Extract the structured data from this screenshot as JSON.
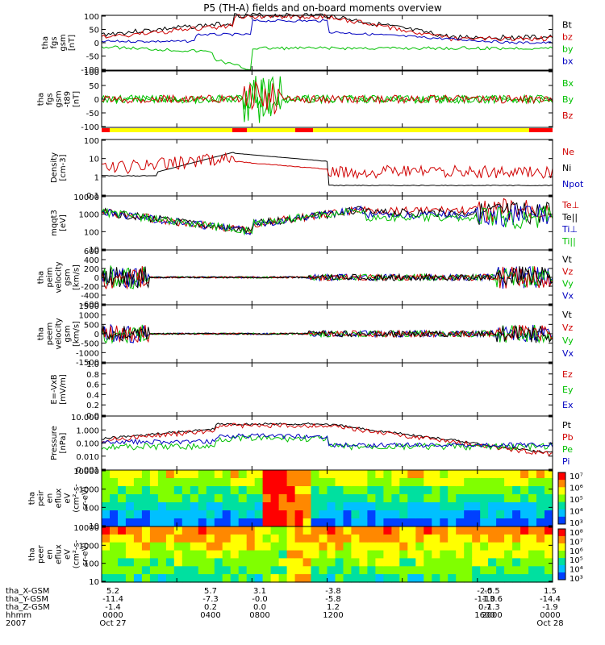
{
  "title": "P5 (TH-A) fields and on-board moments overview",
  "chart_data": {
    "type": "line",
    "x_range": [
      0,
      24
    ],
    "x_unit": "hours UT",
    "panels": [
      {
        "id": "fgs",
        "ylabel": [
          "tha",
          "fgs",
          "gsm",
          "[nT]"
        ],
        "ylim": [
          -100,
          100
        ],
        "yticks": [
          "100",
          "50",
          "0",
          "-50",
          "-100"
        ],
        "legend": [
          {
            "name": "Bt",
            "color": "#000000"
          },
          {
            "name": "bz",
            "color": "#d00000"
          },
          {
            "name": "by",
            "color": "#00c000"
          },
          {
            "name": "bx",
            "color": "#0000c0"
          }
        ]
      },
      {
        "id": "fgs_raw",
        "ylabel": [
          "tha",
          "fgs",
          "gsm",
          "-t89",
          "[nT]"
        ],
        "ylim": [
          -120,
          120
        ],
        "yticks": [
          "100",
          "50",
          "0",
          "-50",
          "-100"
        ],
        "legend": [
          {
            "name": "Bx",
            "color": "#00c000"
          },
          {
            "name": "By",
            "color": "#00c000"
          },
          {
            "name": "Bz",
            "color": "#d00000"
          }
        ]
      },
      {
        "id": "density",
        "ylabel": [
          "Density",
          "[cm-3]"
        ],
        "yticks": [
          "100",
          "10",
          "1",
          "0.1"
        ],
        "legend": [
          {
            "name": "Ne",
            "color": "#d00000"
          },
          {
            "name": "Ni",
            "color": "#000000"
          },
          {
            "name": "Npot",
            "color": "#0000c0"
          }
        ]
      },
      {
        "id": "temp",
        "ylabel": [
          "mqqt3",
          "[eV]"
        ],
        "yticks": [
          "10000",
          "1000",
          "100",
          "10"
        ],
        "legend": [
          {
            "name": "Te⊥",
            "color": "#d00000"
          },
          {
            "name": "Te||",
            "color": "#000000"
          },
          {
            "name": "Ti⊥",
            "color": "#0000c0"
          },
          {
            "name": "Ti||",
            "color": "#00c000"
          }
        ]
      },
      {
        "id": "peim_vel",
        "ylabel": [
          "tha",
          "peim",
          "velocity",
          "gsm",
          "[km/s]"
        ],
        "ylim": [
          -600,
          600
        ],
        "yticks": [
          "600",
          "400",
          "200",
          "0",
          "-200",
          "-400",
          "-600"
        ],
        "legend": [
          {
            "name": "Vt",
            "color": "#000000"
          },
          {
            "name": "Vz",
            "color": "#d00000"
          },
          {
            "name": "Vy",
            "color": "#00c000"
          },
          {
            "name": "Vx",
            "color": "#0000c0"
          }
        ]
      },
      {
        "id": "peem_vel",
        "ylabel": [
          "tha",
          "peem",
          "velocity",
          "gsm",
          "[km/s]"
        ],
        "ylim": [
          -1500,
          1500
        ],
        "yticks": [
          "1500",
          "1000",
          "500",
          "0",
          "-500",
          "-1000",
          "-1500"
        ],
        "legend": [
          {
            "name": "Vt",
            "color": "#000000"
          },
          {
            "name": "Vz",
            "color": "#d00000"
          },
          {
            "name": "Vy",
            "color": "#00c000"
          },
          {
            "name": "Vx",
            "color": "#0000c0"
          }
        ]
      },
      {
        "id": "efield",
        "ylabel": [
          "E=-VxB",
          "[mV/m]"
        ],
        "ylim": [
          0,
          1
        ],
        "yticks": [
          "1.0",
          "0.8",
          "0.6",
          "0.4",
          "0.2",
          "0.0"
        ],
        "legend": [
          {
            "name": "Ez",
            "color": "#d00000"
          },
          {
            "name": "Ey",
            "color": "#00c000"
          },
          {
            "name": "Ex",
            "color": "#0000c0"
          }
        ]
      },
      {
        "id": "pressure",
        "ylabel": [
          "Pressure",
          "[nPa]"
        ],
        "yticks": [
          "10.000",
          "1.000",
          "0.100",
          "0.010",
          "0.001"
        ],
        "legend": [
          {
            "name": "Pt",
            "color": "#000000"
          },
          {
            "name": "Pb",
            "color": "#d00000"
          },
          {
            "name": "Pe",
            "color": "#00c000"
          },
          {
            "name": "Pi",
            "color": "#0000c0"
          }
        ]
      },
      {
        "id": "peir_spec",
        "ylabel": [
          "tha",
          "peir",
          "en",
          "eflux",
          "eV",
          "(cm²-s-",
          "sr-eV)"
        ],
        "yticks": [
          "10000",
          "1000",
          "100",
          "10"
        ],
        "colorbar": [
          "10⁷",
          "10⁶",
          "10⁵",
          "10⁴",
          "10³"
        ]
      },
      {
        "id": "peer_spec",
        "ylabel": [
          "tha",
          "peer",
          "en",
          "eflux",
          "eV",
          "(cm²-s-",
          "sr-eV)"
        ],
        "yticks": [
          "10000",
          "1000",
          "100",
          "10"
        ],
        "colorbar": [
          "10⁸",
          "10⁷",
          "10⁶",
          "10⁵",
          "10⁴",
          "10³"
        ]
      }
    ],
    "ephemeris": {
      "rows": [
        {
          "label": "tha_X-GSM",
          "values": [
            "5.2",
            "5.7",
            "3.1",
            "-3.8",
            "-2.5",
            "-0.5",
            "1.5"
          ]
        },
        {
          "label": "tha_Y-GSM",
          "values": [
            "-11.4",
            "-7.3",
            "-0.0",
            "-5.8",
            "-11.0",
            "-13.6",
            "-14.4"
          ]
        },
        {
          "label": "tha_Z-GSM",
          "values": [
            "-1.4",
            "0.2",
            "0.0",
            "1.2",
            "0.7",
            "-1.3",
            "-1.9"
          ]
        },
        {
          "label": "hhmm",
          "values": [
            "0000",
            "0400",
            "0800",
            "1200",
            "1600",
            "2000",
            "0000"
          ]
        },
        {
          "label": "2007",
          "values": [
            "Oct 27",
            "",
            "",
            "",
            "",
            "",
            "Oct 28"
          ]
        }
      ]
    }
  }
}
